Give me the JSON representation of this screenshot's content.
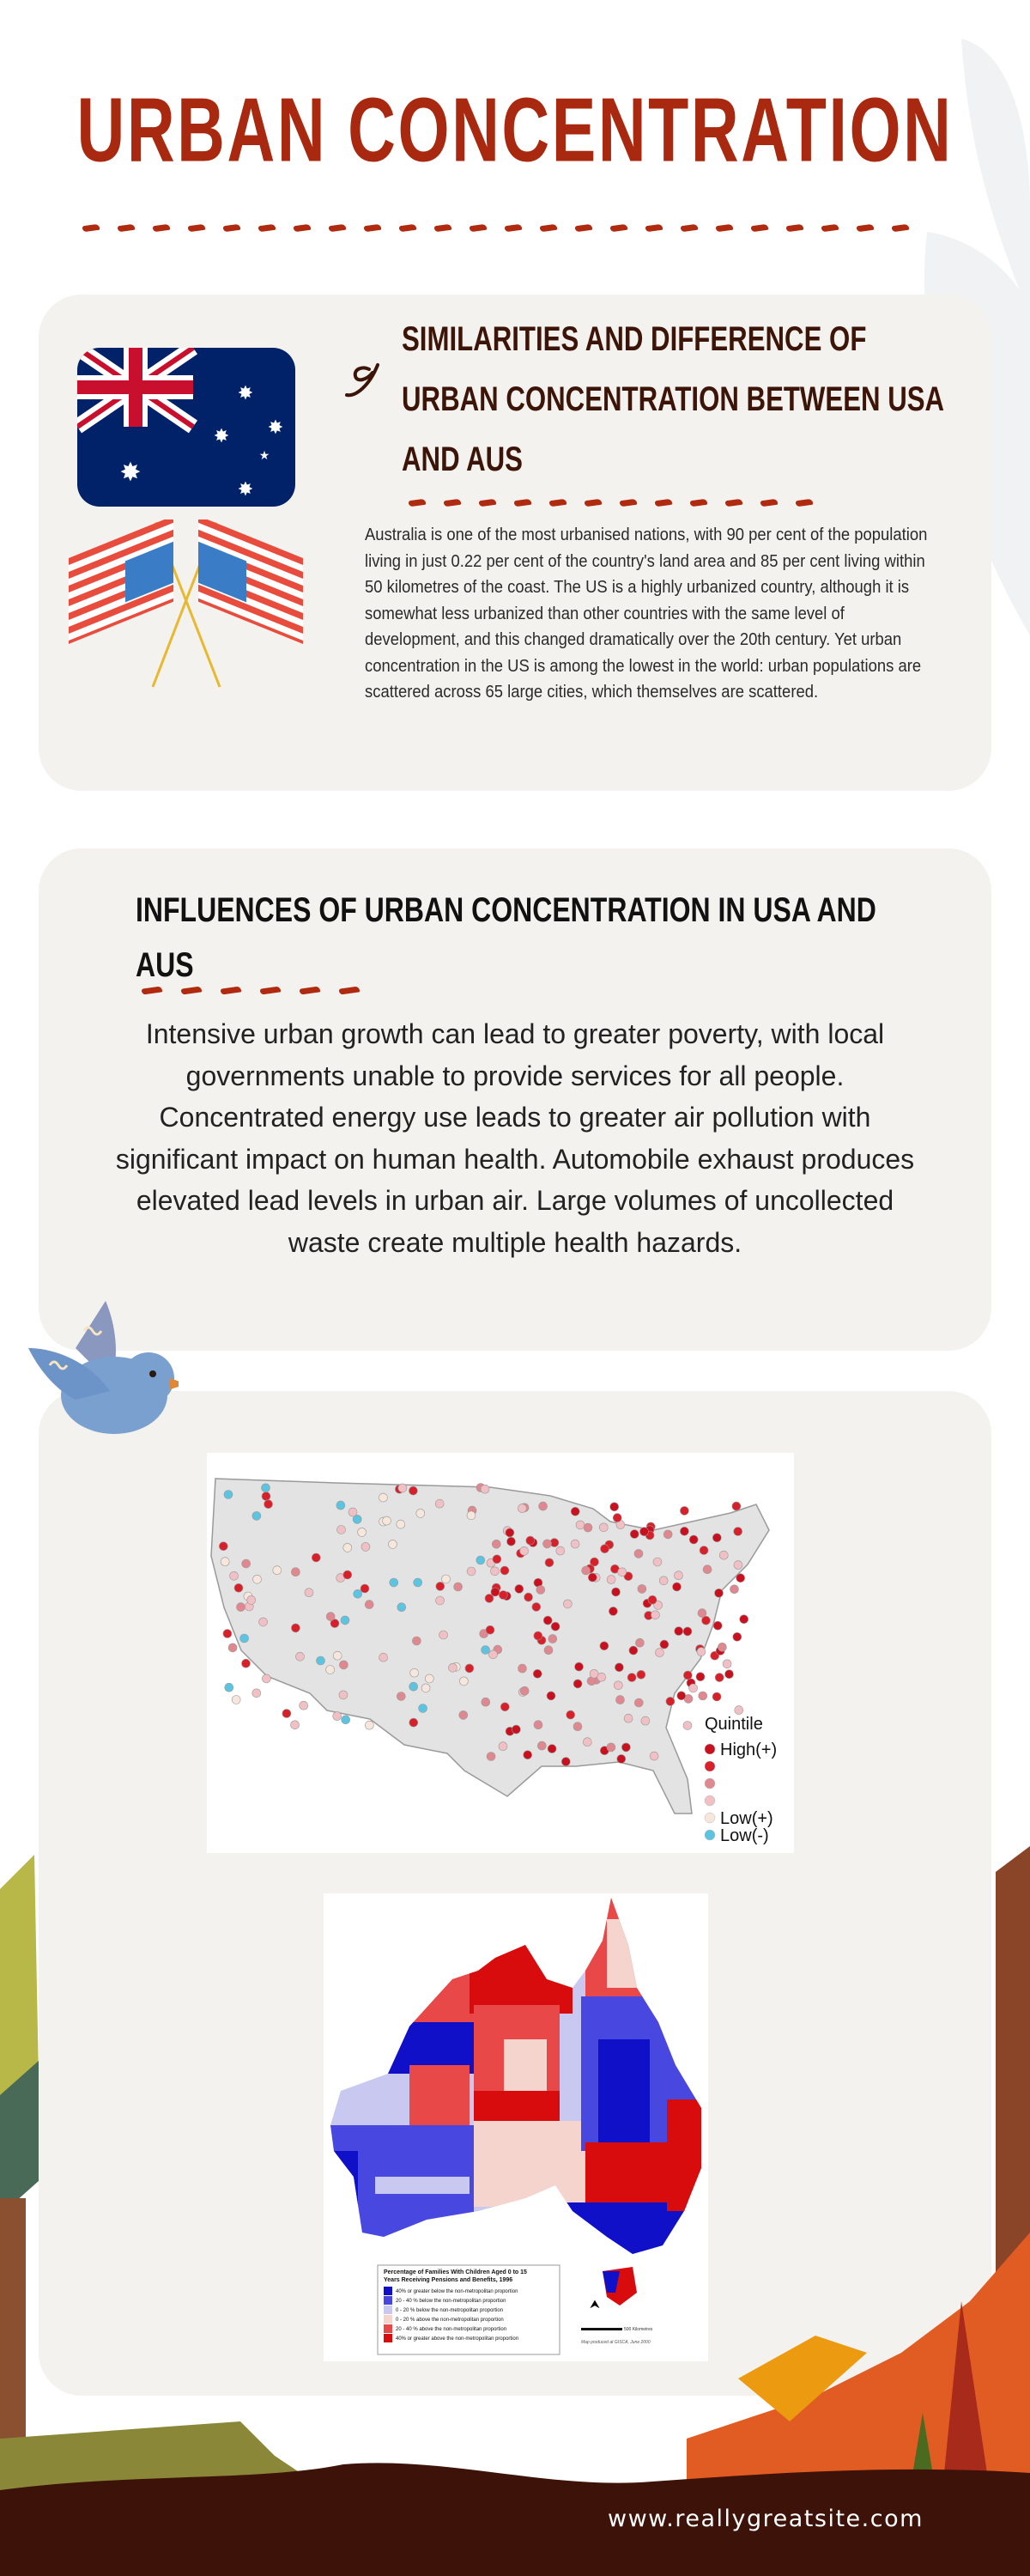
{
  "header": {
    "title": "URBAN CONCENTRATION"
  },
  "section1": {
    "heading": "SIMILARITIES AND DIFFERENCE OF URBAN CONCENTRATION BETWEEN USA AND AUS",
    "body": "Australia is one of the most urbanised nations, with 90 per cent of the population living in just 0.22 per cent of the country's land area and 85 per cent living within 50 kilometres of the coast. The US is a highly urbanized country, although it is somewhat less urbanized than other countries with the same level of development, and this changed dramatically over the 20th century. Yet urban concentration in the US is among the lowest in the world: urban populations are scattered across 65 large cities, which themselves are scattered.",
    "icons": [
      "australia-flag-icon",
      "crossed-us-flags-icon",
      "swirl-icon"
    ]
  },
  "section2": {
    "heading": "INFLUENCES OF URBAN CONCENTRATION IN USA AND AUS",
    "body": "Intensive urban growth can lead to greater poverty, with local governments unable to provide services for all people. Concentrated energy use leads to greater air pollution with significant impact on human health. Automobile exhaust produces elevated lead levels in urban air. Large volumes of uncollected waste create multiple health hazards."
  },
  "us_map": {
    "legend_title": "Quintile",
    "legend": [
      {
        "label": "High(+)",
        "color": "#c8101e"
      },
      {
        "label": "",
        "color": "#d8202a"
      },
      {
        "label": "",
        "color": "#e08890"
      },
      {
        "label": "",
        "color": "#f0c0c4"
      },
      {
        "label": "Low(+)",
        "color": "#f6e6dc"
      },
      {
        "label": "Low(-)",
        "color": "#5cc4e0"
      }
    ]
  },
  "au_map": {
    "legend_title": "Percentage of Families With Children Aged 0 to 15 Years Receiving Pensions and Benefits, 1996",
    "legend": [
      {
        "label": "40% or greater below the non-metropolitan proportion",
        "color": "#1010c8"
      },
      {
        "label": "20 - 40 % below the non-metropolitan proportion",
        "color": "#4848e0"
      },
      {
        "label": "0 - 20 % below the non-metropolitan proportion",
        "color": "#c8c8f0"
      },
      {
        "label": "0 - 20 % above the non-metropolitan proportion",
        "color": "#f4d4cc"
      },
      {
        "label": "20 - 40 % above the non-metropolitan proportion",
        "color": "#e84848"
      },
      {
        "label": "40% or greater above the non-metropolitan proportion",
        "color": "#d80c0c"
      }
    ],
    "scale_label": "500 Kilometres",
    "credit": "Map produced at GISCA, June 2000"
  },
  "footer": {
    "website": "www.reallygreatsite.com"
  },
  "colors": {
    "accent": "#a8290f",
    "heading": "#3d1408",
    "card": "#f4f2ee",
    "ground": "#3d1208"
  }
}
